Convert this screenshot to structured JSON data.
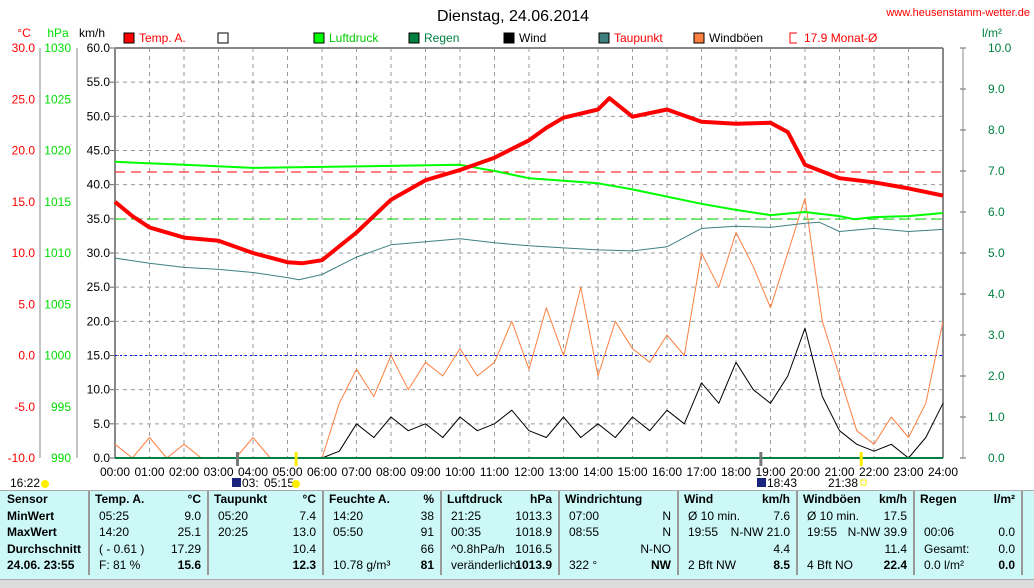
{
  "chart_data": {
    "type": "line",
    "title": "Dienstag, 24.06.2014",
    "source": "www.heusenstamm-wetter.de",
    "axes": {
      "temp": {
        "unit": "°C",
        "range": [
          -10,
          30
        ],
        "ticks": [
          "30.0",
          "25.0",
          "20.0",
          "15.0",
          "10.0",
          "5.0",
          "0.0",
          "-5.0",
          "-10.0"
        ]
      },
      "pressure": {
        "unit": "hPa",
        "range": [
          990,
          1030
        ],
        "ticks": [
          "1030",
          "1025",
          "1020",
          "1015",
          "1010",
          "1005",
          "1000",
          "995",
          "990"
        ]
      },
      "wind": {
        "unit": "km/h",
        "range": [
          0,
          60
        ],
        "ticks": [
          "60.0",
          "55.0",
          "50.0",
          "45.0",
          "40.0",
          "35.0",
          "30.0",
          "25.0",
          "20.0",
          "15.0",
          "10.0",
          "5.0",
          "0.0"
        ]
      },
      "rain": {
        "unit": "l/m²",
        "range": [
          0,
          10
        ],
        "ticks": [
          "10.0",
          "9.0",
          "8.0",
          "7.0",
          "6.0",
          "5.0",
          "4.0",
          "3.0",
          "2.0",
          "1.0",
          "0.0"
        ]
      }
    },
    "x_ticks": [
      "00:00",
      "01:00",
      "02:00",
      "03:00",
      "04:00",
      "05:00",
      "06:00",
      "07:00",
      "08:00",
      "09:00",
      "10:00",
      "11:00",
      "12:00",
      "13:00",
      "14:00",
      "15:00",
      "16:00",
      "17:00",
      "18:00",
      "19:00",
      "20:00",
      "21:00",
      "22:00",
      "23:00",
      "24:00"
    ],
    "legend": [
      {
        "label": "Temp. A.",
        "color": "#ff0000",
        "text_color": "#ff0000"
      },
      {
        "label": "",
        "color": "#ffffff",
        "text_color": "#000000"
      },
      {
        "label": "Luftdruck",
        "color": "#00ff00",
        "text_color": "#00cc00"
      },
      {
        "label": "Regen",
        "color": "#008040",
        "text_color": "#008040"
      },
      {
        "label": "Wind",
        "color": "#000000",
        "text_color": "#000000"
      },
      {
        "label": "Taupunkt",
        "color": "#408080",
        "text_color": "#ff0000"
      },
      {
        "label": "Windböen",
        "color": "#ff8040",
        "text_color": "#000000"
      },
      {
        "label": "17.9 Monat-Ø",
        "color": "none",
        "text_color": "#ff0000"
      }
    ],
    "monthly_avg_temp": 17.9,
    "pressure_ref_line": 1013.3,
    "series": [
      {
        "name": "Temp. A.",
        "axis": "temp",
        "color": "#ff0000",
        "times": [
          0,
          0.5,
          1,
          2,
          3,
          4,
          5,
          5.42,
          6,
          7,
          8,
          9,
          10,
          11,
          12,
          12.5,
          13,
          14,
          14.33,
          15,
          16,
          17,
          18,
          19,
          19.5,
          20,
          21,
          22,
          23,
          24
        ],
        "values": [
          15.0,
          13.6,
          12.5,
          11.5,
          11.2,
          10.0,
          9.1,
          9.0,
          9.3,
          12.0,
          15.2,
          17.1,
          18.1,
          19.3,
          21.0,
          22.2,
          23.2,
          24.0,
          25.1,
          23.3,
          24.0,
          22.8,
          22.6,
          22.7,
          21.8,
          18.6,
          17.3,
          16.9,
          16.3,
          15.6
        ]
      },
      {
        "name": "Luftdruck",
        "axis": "pressure",
        "color": "#00ff00",
        "times": [
          0,
          2,
          4,
          6,
          8,
          10,
          11,
          12,
          14,
          15,
          16,
          17,
          18,
          19,
          20,
          21,
          21.42,
          22,
          23,
          24
        ],
        "values": [
          1018.9,
          1018.6,
          1018.3,
          1018.4,
          1018.5,
          1018.6,
          1018.0,
          1017.3,
          1016.8,
          1016.2,
          1015.5,
          1014.8,
          1014.2,
          1013.7,
          1014.0,
          1013.6,
          1013.3,
          1013.5,
          1013.6,
          1013.9
        ]
      },
      {
        "name": "Taupunkt",
        "axis": "temp",
        "color": "#408080",
        "times": [
          0,
          1,
          2,
          3,
          4,
          5,
          5.33,
          6,
          7,
          8,
          9,
          10,
          11,
          12,
          13,
          14,
          15,
          16,
          17,
          18,
          19,
          20,
          20.42,
          21,
          22,
          23,
          24
        ],
        "values": [
          9.5,
          9.0,
          8.6,
          8.4,
          8.1,
          7.6,
          7.4,
          7.9,
          9.6,
          10.8,
          11.1,
          11.4,
          11.0,
          10.7,
          10.5,
          10.3,
          10.2,
          10.6,
          12.4,
          12.6,
          12.5,
          12.9,
          13.0,
          12.1,
          12.4,
          12.1,
          12.3
        ]
      },
      {
        "name": "Wind",
        "axis": "wind",
        "color": "#000000",
        "step_hours": 0.5,
        "values": [
          0,
          0,
          0,
          0,
          0,
          0,
          0,
          0,
          0,
          0,
          0,
          0,
          0,
          1,
          5,
          3,
          6,
          4,
          5,
          3,
          6,
          4,
          5,
          7,
          4,
          3,
          6,
          3,
          5,
          3,
          6,
          4,
          7,
          5,
          11,
          8,
          14,
          10,
          8,
          12,
          19,
          9,
          4,
          2,
          1,
          2,
          0,
          3,
          8
        ]
      },
      {
        "name": "Windböen",
        "axis": "wind",
        "color": "#ff8040",
        "step_hours": 0.5,
        "values": [
          2,
          0,
          3,
          0,
          2,
          0,
          0,
          0,
          3,
          0,
          0,
          0,
          0,
          8,
          13,
          9,
          15,
          10,
          14,
          12,
          16,
          12,
          14,
          20,
          13,
          22,
          15,
          25,
          12,
          20,
          16,
          14,
          18,
          15,
          30,
          25,
          33,
          28,
          22,
          30,
          38,
          20,
          12,
          4,
          2,
          6,
          3,
          8,
          20
        ]
      },
      {
        "name": "Regen",
        "axis": "rain",
        "color": "#008040",
        "step_hours": 24,
        "values": [
          0,
          0
        ]
      }
    ],
    "sun_events": {
      "sunrise": "05:15",
      "sunset": "21:38",
      "moonrise": "03:",
      "moonset": "18:43",
      "daylength_marker": "16:22"
    }
  },
  "table": {
    "cols": [
      {
        "head": "Sensor",
        "unit": "",
        "rows": [
          [
            "MinWert",
            ""
          ],
          [
            "MaxWert",
            ""
          ],
          [
            "Durchschnitt",
            ""
          ],
          [
            "24.06. 23:55",
            ""
          ]
        ]
      },
      {
        "head": "Temp. A.",
        "unit": "°C",
        "rows": [
          [
            "05:25",
            "9.0"
          ],
          [
            "14:20",
            "25.1"
          ],
          [
            "( - 0.61 )",
            "17.29"
          ],
          [
            "F: 81 %",
            "15.6"
          ]
        ]
      },
      {
        "head": "Taupunkt",
        "unit": "°C",
        "rows": [
          [
            "05:20",
            "7.4"
          ],
          [
            "20:25",
            "13.0"
          ],
          [
            "",
            "10.4"
          ],
          [
            "",
            "12.3"
          ]
        ]
      },
      {
        "head": "Feuchte A.",
        "unit": "%",
        "rows": [
          [
            "14:20",
            "38"
          ],
          [
            "05:50",
            "91"
          ],
          [
            "",
            "66"
          ],
          [
            "10.78 g/m³",
            "81"
          ]
        ]
      },
      {
        "head": "Luftdruck",
        "unit": "hPa",
        "rows": [
          [
            "21:25",
            "1013.3"
          ],
          [
            "00:35",
            "1018.9"
          ],
          [
            "^0.8hPa/h",
            "1016.5"
          ],
          [
            "veränderlich",
            "1013.9"
          ]
        ]
      },
      {
        "head": "Windrichtung",
        "unit": "",
        "rows": [
          [
            "07:00",
            "N"
          ],
          [
            "08:55",
            "N"
          ],
          [
            "",
            "N-NO"
          ],
          [
            "322 °",
            "NW"
          ]
        ]
      },
      {
        "head": "Wind",
        "unit": "km/h",
        "rows": [
          [
            "Ø 10 min.",
            "7.6"
          ],
          [
            "19:55",
            "N-NW 21.0"
          ],
          [
            "",
            "4.4"
          ],
          [
            "2 Bft NW",
            "8.5"
          ]
        ]
      },
      {
        "head": "Windböen",
        "unit": "km/h",
        "rows": [
          [
            "Ø 10 min.",
            "17.5"
          ],
          [
            "19:55",
            "N-NW 39.9"
          ],
          [
            "",
            "11.4"
          ],
          [
            "4 Bft NO",
            "22.4"
          ]
        ]
      },
      {
        "head": "Regen",
        "unit": "l/m²",
        "rows": [
          [
            "",
            ""
          ],
          [
            "00:06",
            "0.0"
          ],
          [
            "Gesamt:",
            "0.0"
          ],
          [
            "0.0 l/m²",
            "0.0"
          ]
        ]
      }
    ]
  }
}
